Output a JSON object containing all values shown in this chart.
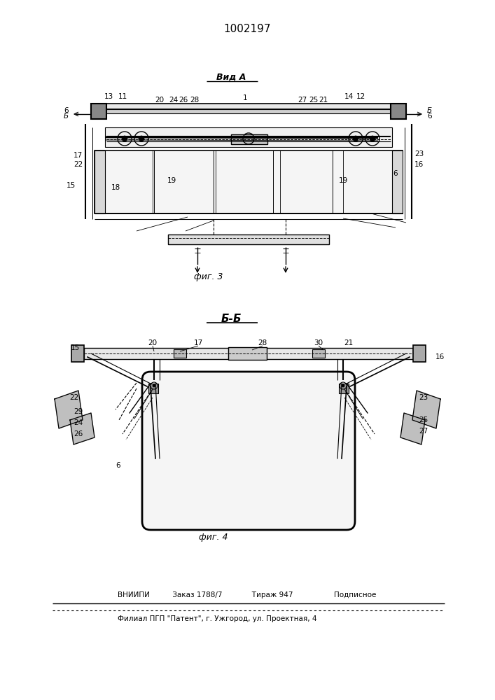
{
  "title": "1002197",
  "fig3_label": "Вид А",
  "fig3_caption": "фиг. 3",
  "fig4_label": "Б-Б",
  "fig4_caption": "фиг. 4",
  "footer_line1": "ВНИИПИ          Заказ 1788/7             Тираж 947                  Подписное",
  "footer_line2": "Филиал ПГП \"Патент\", г. Ужгород, ул. Проектная, 4",
  "bg_color": "#ffffff",
  "line_color": "#000000"
}
